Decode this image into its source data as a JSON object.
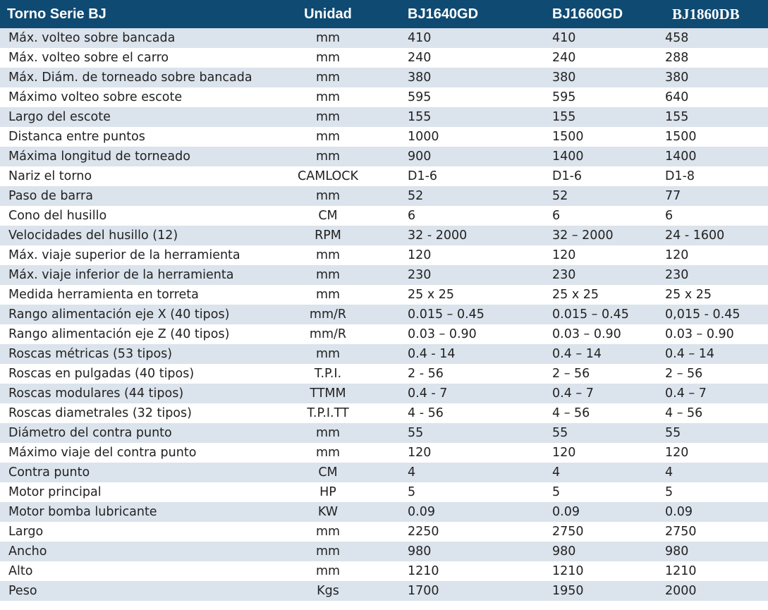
{
  "table": {
    "header": [
      "Torno Serie BJ",
      "Unidad",
      "BJ1640GD",
      "BJ1660GD",
      "BJ1860DB"
    ],
    "rows": [
      [
        "Máx. volteo sobre bancada",
        "mm",
        "410",
        "410",
        "458"
      ],
      [
        "Máx. volteo sobre el carro",
        "mm",
        "240",
        "240",
        "288"
      ],
      [
        "Máx. Diám. de torneado sobre bancada",
        "mm",
        "380",
        "380",
        "380"
      ],
      [
        "Máximo volteo sobre escote",
        "mm",
        "595",
        "595",
        "640"
      ],
      [
        "Largo del escote",
        "mm",
        "155",
        "155",
        "155"
      ],
      [
        "Distanca entre puntos",
        "mm",
        "1000",
        "1500",
        "1500"
      ],
      [
        "Máxima longitud de torneado",
        "mm",
        "900",
        "1400",
        "1400"
      ],
      [
        "Nariz el torno",
        "CAMLOCK",
        "D1-6",
        "D1-6",
        "D1-8"
      ],
      [
        "Paso de barra",
        "mm",
        "52",
        "52",
        "77"
      ],
      [
        "Cono del husillo",
        "CM",
        "6",
        "6",
        "6"
      ],
      [
        "Velocidades del husillo (12)",
        "RPM",
        "32 - 2000",
        "32 – 2000",
        "24 - 1600"
      ],
      [
        "Máx. viaje superior de la herramienta",
        "mm",
        "120",
        "120",
        "120"
      ],
      [
        "Máx. viaje inferior de la herramienta",
        "mm",
        "230",
        "230",
        "230"
      ],
      [
        "Medida herramienta en torreta",
        "mm",
        "25 x 25",
        "25 x 25",
        "25 x 25"
      ],
      [
        "Rango alimentación eje X (40 tipos)",
        "mm/R",
        "0.015 – 0.45",
        "0.015 – 0.45",
        "0,015 - 0.45"
      ],
      [
        "Rango alimentación eje Z (40 tipos)",
        "mm/R",
        "0.03 – 0.90",
        "0.03 – 0.90",
        "0.03 – 0.90"
      ],
      [
        "Roscas métricas (53 tipos)",
        "mm",
        "0.4 - 14",
        "0.4 – 14",
        "0.4 – 14"
      ],
      [
        "Roscas en pulgadas (40 tipos)",
        "T.P.I.",
        "2 - 56",
        "2 – 56",
        "2 – 56"
      ],
      [
        "Roscas modulares (44 tipos)",
        "TTMM",
        "0.4 - 7",
        "0.4 – 7",
        "0.4 – 7"
      ],
      [
        "Roscas diametrales (32 tipos)",
        "T.P.I.TT",
        "4 - 56",
        "4 – 56",
        "4 – 56"
      ],
      [
        "Diámetro del contra punto",
        "mm",
        "55",
        "55",
        "55"
      ],
      [
        "Máximo viaje del contra punto",
        "mm",
        "120",
        "120",
        "120"
      ],
      [
        "Contra punto",
        "CM",
        "4",
        "4",
        "4"
      ],
      [
        "Motor principal",
        "HP",
        "5",
        "5",
        "5"
      ],
      [
        "Motor bomba lubricante",
        "KW",
        "0.09",
        "0.09",
        "0.09"
      ],
      [
        "Largo",
        "mm",
        "2250",
        "2750",
        "2750"
      ],
      [
        "Ancho",
        "mm",
        "980",
        "980",
        "980"
      ],
      [
        "Alto",
        "mm",
        "1210",
        "1210",
        "1210"
      ],
      [
        "Peso",
        "Kgs",
        "1700",
        "1950",
        "2000"
      ]
    ]
  }
}
